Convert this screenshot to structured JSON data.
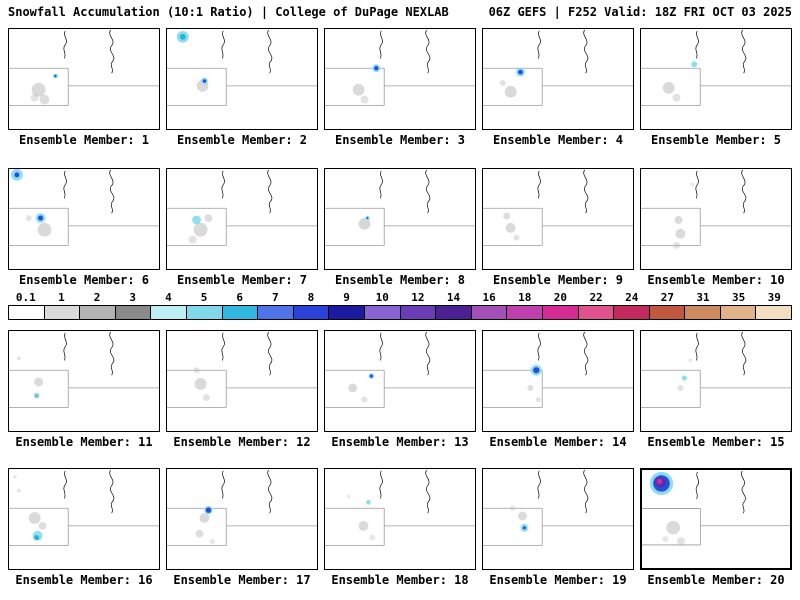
{
  "header": {
    "left": "Snowfall Accumulation (10:1 Ratio) | College of DuPage NEXLAB",
    "right": "06Z GEFS | F252 Valid: 18Z FRI OCT 03 2025"
  },
  "colorbar": {
    "ticks": [
      "0.1",
      "1",
      "2",
      "3",
      "4",
      "5",
      "6",
      "7",
      "8",
      "9",
      "10",
      "12",
      "14",
      "16",
      "18",
      "20",
      "22",
      "24",
      "27",
      "31",
      "35",
      "39"
    ],
    "colors": [
      "#ffffff",
      "#d9d9d9",
      "#b3b3b3",
      "#8a8a8a",
      "#bdeef4",
      "#7fd9ea",
      "#30b8de",
      "#4f74e8",
      "#2b42d6",
      "#1a1ba1",
      "#8a63d2",
      "#6a3cb5",
      "#4a2093",
      "#a34fb8",
      "#c03fae",
      "#d62a96",
      "#e1518d",
      "#c22a5e",
      "#c2573f",
      "#cd8a5e",
      "#e0b488",
      "#f2dec0"
    ]
  },
  "map_colors": {
    "gray": "#b6b6b6",
    "darkgray": "#8c8c8c",
    "cyan": "#86dcec",
    "teal": "#19b3d9",
    "blue": "#1f47dd",
    "navy": "#17189b",
    "purple": "#5c2caa",
    "magenta": "#d02ba8"
  },
  "panels": {
    "members": [
      {
        "id": 1,
        "label": "Ensemble Member: 1",
        "bold": false,
        "blobs": [
          [
            30,
            62,
            7,
            "gray",
            0.5
          ],
          [
            36,
            72,
            5,
            "gray",
            0.45
          ],
          [
            26,
            70,
            4,
            "gray",
            0.4
          ],
          [
            47,
            48,
            2.5,
            "cyan",
            0.95
          ],
          [
            47,
            48,
            1.2,
            "blue",
            0.95
          ]
        ]
      },
      {
        "id": 2,
        "label": "Ensemble Member: 2",
        "bold": false,
        "blobs": [
          [
            16,
            8,
            6,
            "cyan",
            0.95
          ],
          [
            16,
            8,
            3,
            "teal",
            0.95
          ],
          [
            36,
            58,
            6,
            "gray",
            0.5
          ],
          [
            38,
            53,
            3.5,
            "cyan",
            0.9
          ],
          [
            38,
            53,
            1.8,
            "blue",
            0.95
          ]
        ]
      },
      {
        "id": 3,
        "label": "Ensemble Member: 3",
        "bold": false,
        "blobs": [
          [
            34,
            62,
            6,
            "gray",
            0.5
          ],
          [
            40,
            72,
            4,
            "gray",
            0.4
          ],
          [
            52,
            40,
            4,
            "cyan",
            0.95
          ],
          [
            52,
            40,
            2.2,
            "blue",
            0.95
          ]
        ]
      },
      {
        "id": 4,
        "label": "Ensemble Member: 4",
        "bold": false,
        "blobs": [
          [
            28,
            64,
            6,
            "gray",
            0.5
          ],
          [
            20,
            55,
            3,
            "gray",
            0.4
          ],
          [
            38,
            44,
            4.5,
            "cyan",
            0.95
          ],
          [
            38,
            44,
            2.4,
            "blue",
            0.95
          ]
        ]
      },
      {
        "id": 5,
        "label": "Ensemble Member: 5",
        "bold": false,
        "blobs": [
          [
            28,
            60,
            6,
            "gray",
            0.5
          ],
          [
            36,
            70,
            4,
            "gray",
            0.4
          ],
          [
            54,
            36,
            3,
            "cyan",
            0.95
          ]
        ]
      },
      {
        "id": 6,
        "label": "Ensemble Member: 6",
        "bold": false,
        "blobs": [
          [
            8,
            6,
            6,
            "cyan",
            0.95
          ],
          [
            8,
            6,
            2.5,
            "blue",
            0.95
          ],
          [
            36,
            62,
            7,
            "gray",
            0.5
          ],
          [
            20,
            50,
            3,
            "gray",
            0.4
          ],
          [
            32,
            50,
            5,
            "cyan",
            0.9
          ],
          [
            32,
            50,
            2.6,
            "blue",
            0.95
          ]
        ]
      },
      {
        "id": 7,
        "label": "Ensemble Member: 7",
        "bold": false,
        "blobs": [
          [
            34,
            62,
            7,
            "gray",
            0.5
          ],
          [
            42,
            50,
            4,
            "gray",
            0.45
          ],
          [
            26,
            72,
            4,
            "gray",
            0.4
          ],
          [
            30,
            52,
            4.5,
            "cyan",
            0.9
          ]
        ]
      },
      {
        "id": 8,
        "label": "Ensemble Member: 8",
        "bold": false,
        "blobs": [
          [
            40,
            56,
            6,
            "gray",
            0.55
          ],
          [
            43,
            50,
            2.2,
            "cyan",
            0.95
          ],
          [
            43,
            50,
            1,
            "blue",
            0.95
          ]
        ]
      },
      {
        "id": 9,
        "label": "Ensemble Member: 9",
        "bold": false,
        "blobs": [
          [
            28,
            60,
            5,
            "gray",
            0.5
          ],
          [
            24,
            48,
            3.5,
            "gray",
            0.45
          ],
          [
            34,
            70,
            3,
            "gray",
            0.4
          ]
        ]
      },
      {
        "id": 10,
        "label": "Ensemble Member: 10",
        "bold": false,
        "blobs": [
          [
            38,
            52,
            4,
            "gray",
            0.5
          ],
          [
            40,
            66,
            5,
            "gray",
            0.5
          ],
          [
            36,
            78,
            3.5,
            "gray",
            0.4
          ],
          [
            52,
            16,
            2,
            "gray",
            0.35
          ]
        ]
      },
      {
        "id": 11,
        "label": "Ensemble Member: 11",
        "bold": false,
        "blobs": [
          [
            30,
            52,
            4.5,
            "gray",
            0.5
          ],
          [
            10,
            28,
            2,
            "gray",
            0.35
          ],
          [
            28,
            66,
            3,
            "cyan",
            0.9
          ],
          [
            28,
            66,
            1.5,
            "darkgray",
            0.6
          ]
        ]
      },
      {
        "id": 12,
        "label": "Ensemble Member: 12",
        "bold": false,
        "blobs": [
          [
            34,
            54,
            6,
            "gray",
            0.5
          ],
          [
            30,
            40,
            3,
            "gray",
            0.4
          ],
          [
            40,
            68,
            3.5,
            "gray",
            0.4
          ]
        ]
      },
      {
        "id": 13,
        "label": "Ensemble Member: 13",
        "bold": false,
        "blobs": [
          [
            28,
            58,
            4.5,
            "gray",
            0.5
          ],
          [
            40,
            70,
            3,
            "gray",
            0.4
          ],
          [
            47,
            46,
            3,
            "cyan",
            0.9
          ],
          [
            47,
            46,
            1.6,
            "blue",
            0.95
          ]
        ]
      },
      {
        "id": 14,
        "label": "Ensemble Member: 14",
        "bold": false,
        "blobs": [
          [
            54,
            40,
            5.5,
            "cyan",
            0.95
          ],
          [
            54,
            40,
            3.2,
            "blue",
            0.95
          ],
          [
            48,
            58,
            3,
            "gray",
            0.45
          ],
          [
            56,
            70,
            2.5,
            "gray",
            0.4
          ]
        ]
      },
      {
        "id": 15,
        "label": "Ensemble Member: 15",
        "bold": false,
        "blobs": [
          [
            44,
            48,
            2.6,
            "cyan",
            0.95
          ],
          [
            40,
            58,
            3,
            "gray",
            0.4
          ],
          [
            50,
            30,
            2,
            "gray",
            0.3
          ]
        ]
      },
      {
        "id": 16,
        "label": "Ensemble Member: 16",
        "bold": false,
        "blobs": [
          [
            26,
            50,
            6,
            "gray",
            0.5
          ],
          [
            34,
            58,
            4,
            "gray",
            0.45
          ],
          [
            10,
            22,
            2,
            "gray",
            0.35
          ],
          [
            6,
            8,
            2,
            "gray",
            0.3
          ],
          [
            29,
            68,
            5,
            "cyan",
            0.9
          ],
          [
            28,
            70,
            2.6,
            "teal",
            0.95
          ]
        ]
      },
      {
        "id": 17,
        "label": "Ensemble Member: 17",
        "bold": false,
        "blobs": [
          [
            38,
            50,
            5,
            "gray",
            0.5
          ],
          [
            33,
            66,
            4,
            "gray",
            0.45
          ],
          [
            46,
            74,
            2.5,
            "gray",
            0.35
          ],
          [
            42,
            42,
            4.2,
            "cyan",
            0.9
          ],
          [
            42,
            42,
            2.8,
            "blue",
            0.95
          ]
        ]
      },
      {
        "id": 18,
        "label": "Ensemble Member: 18",
        "bold": false,
        "blobs": [
          [
            39,
            58,
            5,
            "gray",
            0.5
          ],
          [
            24,
            28,
            2,
            "gray",
            0.3
          ],
          [
            48,
            70,
            3,
            "gray",
            0.35
          ],
          [
            44,
            34,
            2.4,
            "cyan",
            0.95
          ]
        ]
      },
      {
        "id": 19,
        "label": "Ensemble Member: 19",
        "bold": false,
        "blobs": [
          [
            40,
            48,
            4.5,
            "gray",
            0.5
          ],
          [
            30,
            40,
            2.5,
            "gray",
            0.35
          ],
          [
            42,
            60,
            4,
            "cyan",
            0.9
          ],
          [
            42,
            60,
            1.6,
            "blue",
            0.95
          ]
        ]
      },
      {
        "id": 20,
        "label": "Ensemble Member: 20",
        "bold": true,
        "blobs": [
          [
            32,
            60,
            7,
            "gray",
            0.5
          ],
          [
            40,
            74,
            4,
            "gray",
            0.4
          ],
          [
            24,
            72,
            3,
            "gray",
            0.35
          ],
          [
            20,
            14,
            12,
            "cyan",
            0.95
          ],
          [
            20,
            14,
            8.5,
            "blue",
            0.95
          ],
          [
            19,
            13,
            5.5,
            "purple",
            0.95
          ],
          [
            18,
            12,
            2.8,
            "magenta",
            0.95
          ]
        ]
      }
    ]
  }
}
